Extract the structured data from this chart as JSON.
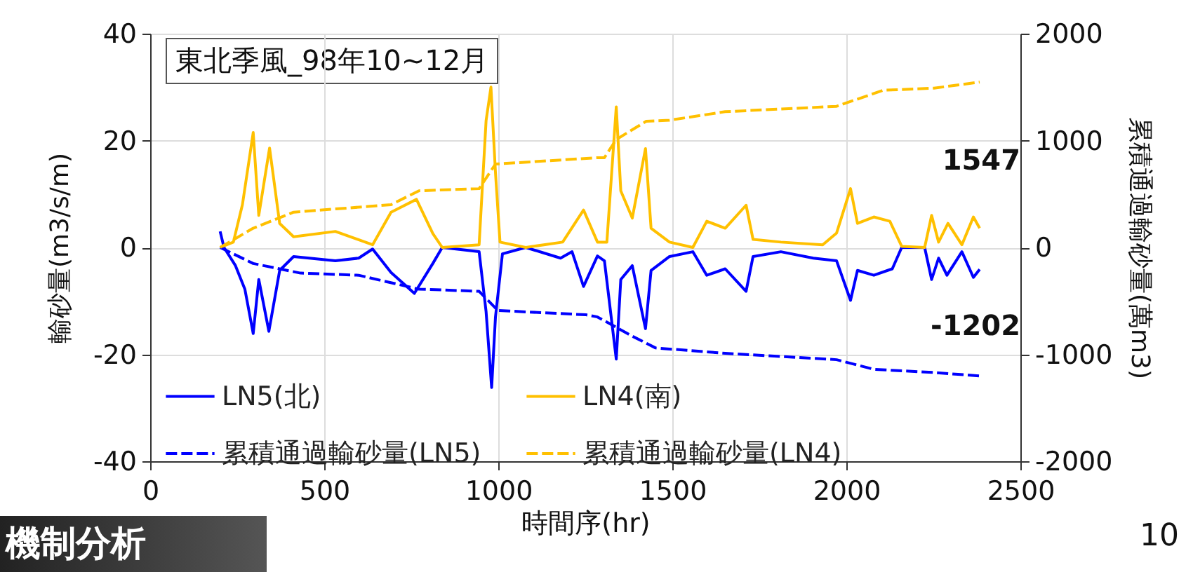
{
  "chart_data": {
    "type": "line",
    "title": "東北季風_98年10~12月",
    "xlabel": "時間序(hr)",
    "ylabel": "輸砂量(m3/s/m)",
    "y2label": "累積通過輸砂量(萬m3)",
    "xlim": [
      0,
      2500
    ],
    "xticks": [
      0,
      500,
      1000,
      1500,
      2000,
      2500
    ],
    "ylim": [
      -40,
      40
    ],
    "yticks": [
      -40,
      -20,
      0,
      20,
      40
    ],
    "y2lim": [
      -2000,
      2000
    ],
    "y2ticks": [
      -2000,
      -1000,
      0,
      1000,
      2000
    ],
    "grid": true,
    "legend": "bottom",
    "series": [
      {
        "name": "LN5(北)",
        "color": "#0000ff",
        "line_style": "solid",
        "x": [
          201,
          212,
          245,
          272,
          296,
          312,
          341,
          372,
          412,
          532,
          599,
          639,
          692,
          759,
          812,
          839,
          945,
          965,
          981,
          992,
          1012,
          1079,
          1179,
          1212,
          1245,
          1285,
          1305,
          1339,
          1352,
          1385,
          1423,
          1439,
          1492,
          1559,
          1599,
          1652,
          1712,
          1732,
          1812,
          1905,
          1972,
          2012,
          2032,
          2079,
          2132,
          2159,
          2225,
          2245,
          2265,
          2289,
          2332,
          2365,
          2383
        ],
        "values": [
          3,
          0,
          -3.4,
          -7.8,
          -16.1,
          -6,
          -15.7,
          -4.3,
          -1.7,
          -2.5,
          -2,
          -0.3,
          -4.7,
          -8.6,
          -3,
          0,
          -0.8,
          -12,
          -26.2,
          -13,
          -1.2,
          0,
          -2,
          -0.8,
          -7.3,
          -1.6,
          -2.5,
          -20.9,
          -6,
          -3.4,
          -15.2,
          -4.3,
          -1.7,
          -0.8,
          -5.2,
          -4,
          -8.2,
          -1.7,
          -0.8,
          -2,
          -2.5,
          -9.9,
          -4.3,
          -5.2,
          -4,
          0,
          0,
          -6,
          -2,
          -5.2,
          -0.8,
          -5.6,
          -4.1
        ]
      },
      {
        "name": "LN4(南)",
        "color": "#ffc000",
        "line_style": "solid",
        "x": [
          201,
          239,
          265,
          296,
          312,
          343,
          372,
          412,
          532,
          639,
          692,
          765,
          812,
          839,
          945,
          965,
          979,
          992,
          1005,
          1079,
          1185,
          1245,
          1285,
          1312,
          1339,
          1352,
          1385,
          1423,
          1439,
          1492,
          1559,
          1599,
          1652,
          1712,
          1732,
          1812,
          1932,
          1972,
          2012,
          2032,
          2079,
          2125,
          2159,
          2225,
          2245,
          2265,
          2292,
          2332,
          2365,
          2383
        ],
        "values": [
          0,
          1,
          8,
          21.5,
          6,
          18.6,
          4.5,
          2,
          3,
          0.5,
          6.6,
          9,
          2.6,
          0,
          0.5,
          23.7,
          30,
          14,
          1,
          0,
          1,
          7,
          1,
          1,
          26.3,
          10.6,
          5.5,
          18.5,
          3.6,
          1,
          0,
          4.9,
          3.6,
          7.9,
          1.5,
          1,
          0.5,
          2.7,
          11,
          4.5,
          5.7,
          4.9,
          0.2,
          0,
          6,
          1,
          4.5,
          0.5,
          5.7,
          3.6
        ]
      },
      {
        "name": "累積通過輸砂量(LN5)",
        "color": "#0000ff",
        "line_style": "dashed",
        "axis": "y2",
        "x": [
          201,
          296,
          432,
          599,
          772,
          945,
          999,
          1252,
          1285,
          1385,
          1452,
          1652,
          1972,
          2079,
          2252,
          2383
        ],
        "values": [
          0,
          -150,
          -240,
          -260,
          -390,
          -410,
          -590,
          -630,
          -650,
          -830,
          -940,
          -990,
          -1050,
          -1140,
          -1170,
          -1202
        ]
      },
      {
        "name": "累積通過輸砂量(LN4)",
        "color": "#ffc000",
        "line_style": "dashed",
        "axis": "y2",
        "x": [
          201,
          296,
          412,
          692,
          772,
          945,
          992,
          1285,
          1305,
          1339,
          1425,
          1492,
          1652,
          1972,
          2105,
          2252,
          2383
        ],
        "values": [
          0,
          180,
          330,
          400,
          530,
          550,
          780,
          840,
          840,
          1010,
          1180,
          1190,
          1270,
          1320,
          1470,
          1490,
          1547
        ]
      }
    ],
    "annotations": [
      "1547",
      "-1202",
      "機制分析",
      "10"
    ]
  }
}
